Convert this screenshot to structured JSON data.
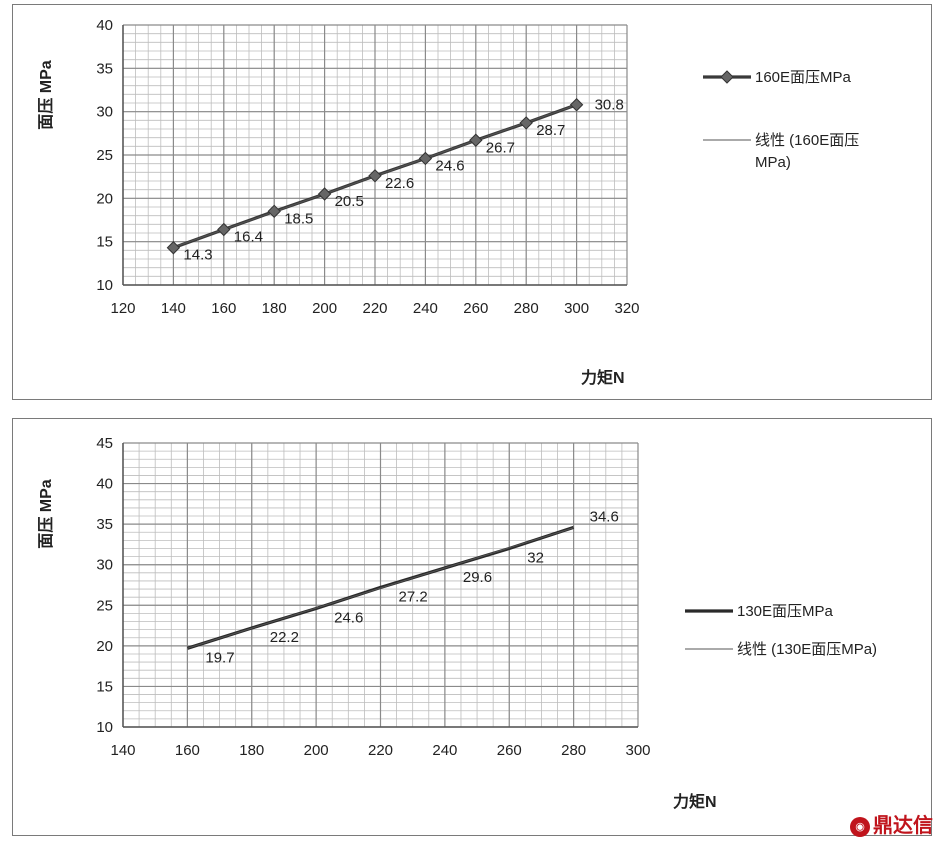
{
  "chart_data": [
    {
      "type": "line",
      "xlabel": "力矩N",
      "ylabel": "面压  MPa",
      "xlim": [
        120,
        320
      ],
      "ylim": [
        10,
        40
      ],
      "x_ticks": [
        120,
        140,
        160,
        180,
        200,
        220,
        240,
        260,
        280,
        300,
        320
      ],
      "y_ticks": [
        10,
        15,
        20,
        25,
        30,
        35,
        40
      ],
      "grid": true,
      "legend_position": "right",
      "series": [
        {
          "name": "160E面压MPa",
          "x": [
            140,
            160,
            180,
            200,
            220,
            240,
            260,
            280,
            300
          ],
          "values": [
            14.3,
            16.4,
            18.5,
            20.5,
            22.6,
            24.6,
            26.7,
            28.7,
            30.8
          ],
          "labels": [
            "14.3",
            "16.4",
            "18.5",
            "20.5",
            "22.6",
            "24.6",
            "26.7",
            "28.7",
            "30.8"
          ],
          "marker": "diamond",
          "color": "#3a3a3a"
        },
        {
          "name": "线性 (160E面压MPa)",
          "type": "linear-trendline",
          "color": "#555555"
        }
      ]
    },
    {
      "type": "line",
      "xlabel": "力矩N",
      "ylabel": "面压  MPa",
      "xlim": [
        140,
        300
      ],
      "ylim": [
        10,
        45
      ],
      "x_ticks": [
        140,
        160,
        180,
        200,
        220,
        240,
        260,
        280,
        300
      ],
      "y_ticks": [
        10,
        15,
        20,
        25,
        30,
        35,
        40,
        45
      ],
      "grid": true,
      "legend_position": "right",
      "series": [
        {
          "name": "130E面压MPa",
          "x": [
            160,
            180,
            200,
            220,
            240,
            260,
            280
          ],
          "values": [
            19.7,
            22.2,
            24.6,
            27.2,
            29.6,
            32,
            34.6
          ],
          "labels": [
            "19.7",
            "22.2",
            "24.6",
            "27.2",
            "29.6",
            "32",
            "34.6"
          ],
          "marker": "none",
          "color": "#2a2a2a"
        },
        {
          "name": "线性 (130E面压MPa)",
          "type": "linear-trendline",
          "color": "#555555"
        }
      ]
    }
  ],
  "watermark": {
    "text": "鼎达信",
    "icon": "logo-seal-icon",
    "color": "#c0141c"
  }
}
